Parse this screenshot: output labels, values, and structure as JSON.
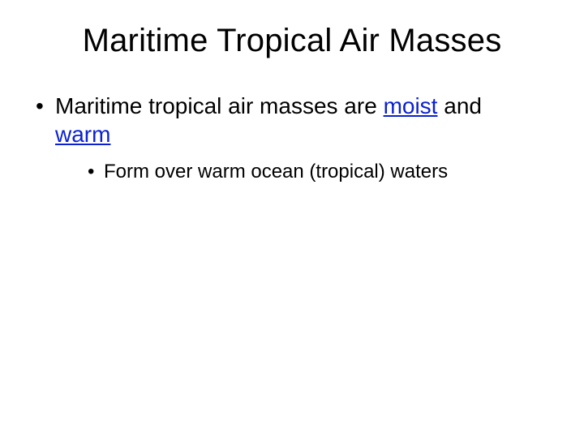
{
  "slide": {
    "title": "Maritime Tropical Air Masses",
    "bullets": {
      "l1": {
        "pre": "Maritime tropical air masses are ",
        "key1": "moist",
        "mid": " and",
        "key2": "warm"
      },
      "l2": "Form over warm ocean (tropical) waters"
    }
  },
  "colors": {
    "accent": "#0b21d1",
    "text": "#000000",
    "background": "#ffffff"
  },
  "typography": {
    "title_fontsize": 40,
    "l1_fontsize": 28,
    "l2_fontsize": 24,
    "font_family": "Arial"
  }
}
